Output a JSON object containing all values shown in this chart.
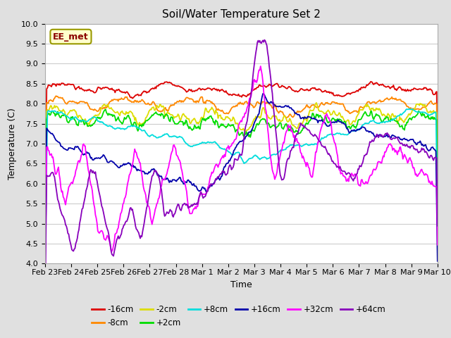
{
  "title": "Soil/Water Temperature Set 2",
  "xlabel": "Time",
  "ylabel": "Temperature (C)",
  "ylim": [
    4.0,
    10.0
  ],
  "yticks": [
    4.0,
    4.5,
    5.0,
    5.5,
    6.0,
    6.5,
    7.0,
    7.5,
    8.0,
    8.5,
    9.0,
    9.5,
    10.0
  ],
  "annotation_text": "EE_met",
  "bg_color": "#e0e0e0",
  "plot_bg_color": "#ffffff",
  "series": {
    "-16cm": {
      "color": "#dd0000",
      "lw": 1.3
    },
    "-8cm": {
      "color": "#ff8800",
      "lw": 1.3
    },
    "-2cm": {
      "color": "#dddd00",
      "lw": 1.3
    },
    "+2cm": {
      "color": "#00dd00",
      "lw": 1.3
    },
    "+8cm": {
      "color": "#00dddd",
      "lw": 1.3
    },
    "+16cm": {
      "color": "#0000aa",
      "lw": 1.3
    },
    "+32cm": {
      "color": "#ff00ff",
      "lw": 1.3
    },
    "+64cm": {
      "color": "#8800bb",
      "lw": 1.3
    }
  },
  "xtick_labels": [
    "Feb 23",
    "Feb 24",
    "Feb 25",
    "Feb 26",
    "Feb 27",
    "Feb 28",
    "Mar 1",
    "Mar 2",
    "Mar 3",
    "Mar 4",
    "Mar 5",
    "Mar 6",
    "Mar 7",
    "Mar 8",
    "Mar 9",
    "Mar 10"
  ],
  "num_points": 500
}
